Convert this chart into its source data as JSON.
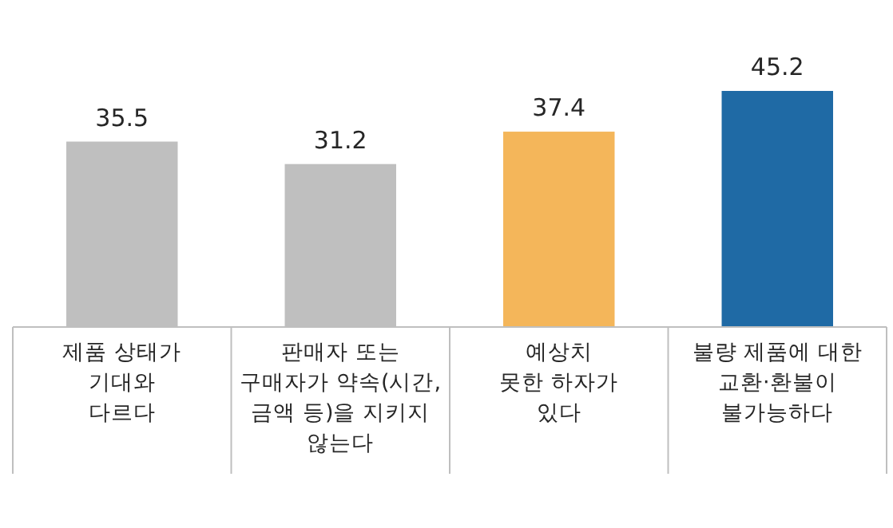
{
  "chart_data": {
    "type": "bar",
    "categories": [
      "제품 상태가\n기대와\n다르다",
      "판매자 또는\n구매자가 약속(시간,\n금액 등)을 지키지\n않는다",
      "예상치\n못한 하자가\n있다",
      "불량 제품에 대한\n교환·환불이\n불가능하다"
    ],
    "values": [
      35.5,
      31.2,
      37.4,
      45.2
    ],
    "colors": [
      "#bfbfbf",
      "#bfbfbf",
      "#f4b65a",
      "#1f6aa5"
    ],
    "data_labels": true
  }
}
